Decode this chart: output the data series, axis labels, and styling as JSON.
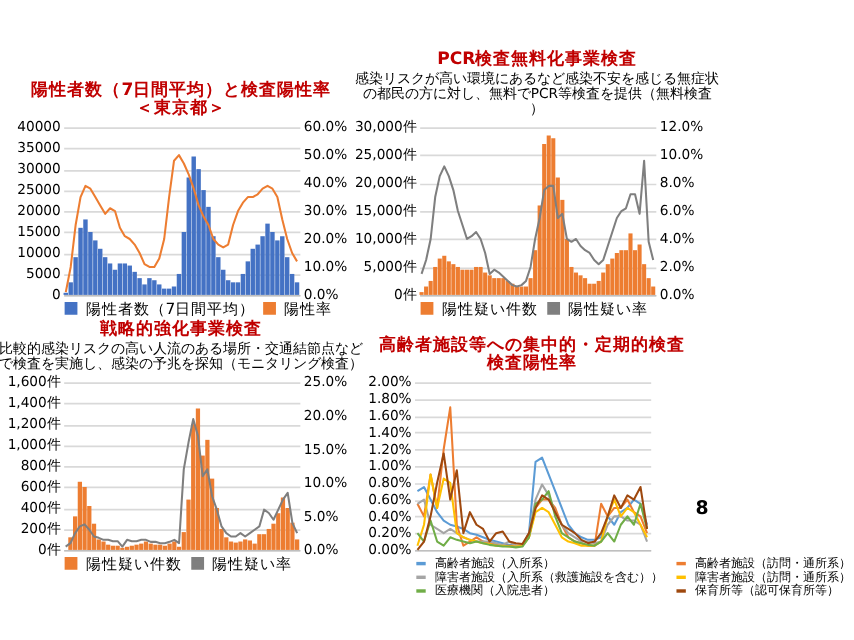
{
  "chart_data": [
    {
      "type": "bar",
      "title": "陽性者数（7日間平均）と検査陽性率＜東京都＞",
      "categories": [
        null,
        null,
        null,
        null,
        null,
        null,
        null,
        null,
        null,
        null,
        null,
        null,
        null,
        null,
        null,
        null,
        null,
        null,
        null,
        null,
        null,
        null,
        null,
        null,
        null,
        null,
        null,
        null,
        null,
        null,
        null,
        null,
        null,
        null,
        null,
        null,
        null,
        null,
        null,
        null,
        null,
        null,
        null,
        null,
        null,
        null,
        null,
        null
      ],
      "series": [
        {
          "name": "陽性者数（7日間平均）",
          "type": "bar",
          "color": "#4472c4",
          "values": [
            500,
            3000,
            9000,
            16000,
            18000,
            15000,
            13000,
            11000,
            9000,
            7500,
            6000,
            7500,
            7500,
            7000,
            5500,
            4000,
            2500,
            4000,
            3500,
            2500,
            1500,
            1500,
            2000,
            5000,
            15000,
            28000,
            33000,
            30000,
            25000,
            21000,
            14000,
            9000,
            6000,
            3500,
            3000,
            3000,
            5000,
            8000,
            11000,
            12000,
            14000,
            17000,
            15000,
            13000,
            14000,
            9000,
            5000,
            3000
          ]
        },
        {
          "name": "陽性率",
          "type": "line",
          "axis": "y2",
          "color": "#ed7d31",
          "values": [
            1,
            10,
            25,
            35,
            39,
            38,
            35,
            32,
            29,
            31,
            30,
            24,
            21,
            20,
            18,
            15,
            11,
            10,
            10,
            13,
            20,
            35,
            48,
            50,
            47,
            43,
            38,
            32,
            28,
            25,
            20,
            18,
            17,
            18,
            25,
            30,
            33,
            35,
            35,
            36,
            38,
            39,
            38,
            35,
            27,
            20,
            15,
            12
          ]
        }
      ],
      "ylim": [
        0,
        40000
      ],
      "yticks": [
        0,
        5000,
        10000,
        15000,
        20000,
        25000,
        30000,
        35000,
        40000
      ],
      "y2lim": [
        0,
        60
      ],
      "y2ticks": [
        {
          "value": 0,
          "label": "0.0%"
        },
        {
          "value": 10,
          "label": "10.0%"
        },
        {
          "value": 20,
          "label": "20.0%"
        },
        {
          "value": 30,
          "label": "30.0%"
        },
        {
          "value": 40,
          "label": "40.0%"
        },
        {
          "value": 50,
          "label": "50.0%"
        },
        {
          "value": 60,
          "label": "60.0%"
        }
      ],
      "grid": "y",
      "legend": "bottom",
      "tick_labels": "y"
    },
    {
      "type": "bar",
      "title": "PCR検査無料化事業検査",
      "subtitle": "感染リスクが高い環境にあるなど感染不安を感じる無症状の都民の方に対し、無料でPCR等検査を提供（無料検査）",
      "categories": [
        null,
        null,
        null,
        null,
        null,
        null,
        null,
        null,
        null,
        null,
        null,
        null,
        null,
        null,
        null,
        null,
        null,
        null,
        null,
        null,
        null,
        null,
        null,
        null,
        null,
        null,
        null,
        null,
        null,
        null,
        null,
        null,
        null,
        null,
        null,
        null,
        null,
        null,
        null,
        null,
        null,
        null,
        null,
        null,
        null,
        null,
        null,
        null,
        null,
        null,
        null,
        null
      ],
      "series": [
        {
          "name": "陽性疑い件数",
          "type": "bar",
          "color": "#ed7d31",
          "values": [
            500,
            1500,
            2500,
            5000,
            6500,
            7000,
            6000,
            5500,
            5000,
            4500,
            4500,
            4500,
            5000,
            5000,
            4000,
            3500,
            3000,
            3000,
            3000,
            2500,
            2000,
            1500,
            1500,
            1500,
            3000,
            8000,
            16000,
            27000,
            28500,
            28000,
            21000,
            17000,
            10000,
            5000,
            4000,
            3500,
            3000,
            2000,
            2000,
            2500,
            4000,
            5500,
            6500,
            7500,
            8000,
            8000,
            11000,
            8000,
            9000,
            5500,
            3000,
            1500
          ]
        },
        {
          "name": "陽性疑い率",
          "type": "line",
          "axis": "y2",
          "color": "#7f7f7f",
          "values": [
            1.5,
            2.5,
            4,
            7,
            8.5,
            9.2,
            8.5,
            7.5,
            6,
            5,
            4,
            4.2,
            4.5,
            4,
            3,
            1.5,
            1.8,
            1.6,
            1.3,
            1,
            0.7,
            0.6,
            0.7,
            1,
            2,
            4,
            5.5,
            7.5,
            7.8,
            7.8,
            5.5,
            5.8,
            4,
            3.8,
            4,
            3.5,
            3.2,
            3,
            2.5,
            2.2,
            2.5,
            3.5,
            4.5,
            5.5,
            6,
            6.2,
            7.2,
            7.2,
            5.8,
            9.6,
            3.8,
            2.5
          ]
        }
      ],
      "ylim": [
        0,
        30000
      ],
      "yticks": [
        {
          "value": 0,
          "label": "0件"
        },
        {
          "value": 5000,
          "label": "5,000件"
        },
        {
          "value": 10000,
          "label": "10,000件"
        },
        {
          "value": 15000,
          "label": "15,000件"
        },
        {
          "value": 20000,
          "label": "20,000件"
        },
        {
          "value": 25000,
          "label": "25,000件"
        },
        {
          "value": 30000,
          "label": "30,000件"
        }
      ],
      "y2lim": [
        0,
        12
      ],
      "y2ticks": [
        {
          "value": 0,
          "label": "0.0%"
        },
        {
          "value": 2,
          "label": "2.0%"
        },
        {
          "value": 4,
          "label": "4.0%"
        },
        {
          "value": 6,
          "label": "6.0%"
        },
        {
          "value": 8,
          "label": "8.0%"
        },
        {
          "value": 10,
          "label": "10.0%"
        },
        {
          "value": 12,
          "label": "12.0%"
        }
      ],
      "grid": "y",
      "legend": "bottom",
      "tick_labels": "y"
    },
    {
      "type": "bar",
      "title": "戦略的強化事業検査",
      "subtitle": "比較的感染リスクの高い人流のある場所・交通結節点などで検査を実施し、感染の予兆を探知（モニタリング検査）",
      "categories": [
        null,
        null,
        null,
        null,
        null,
        null,
        null,
        null,
        null,
        null,
        null,
        null,
        null,
        null,
        null,
        null,
        null,
        null,
        null,
        null,
        null,
        null,
        null,
        null,
        null,
        null,
        null,
        null,
        null,
        null,
        null,
        null,
        null,
        null,
        null,
        null,
        null,
        null,
        null,
        null,
        null,
        null,
        null,
        null,
        null,
        null,
        null,
        null,
        null,
        null
      ],
      "series": [
        {
          "name": "陽性疑い件数",
          "type": "bar",
          "color": "#ed7d31",
          "values": [
            0,
            120,
            320,
            650,
            600,
            420,
            250,
            100,
            80,
            50,
            40,
            40,
            20,
            30,
            40,
            50,
            60,
            80,
            60,
            50,
            50,
            40,
            60,
            80,
            30,
            170,
            480,
            1200,
            1350,
            900,
            1050,
            680,
            400,
            200,
            120,
            80,
            70,
            80,
            100,
            90,
            60,
            150,
            150,
            200,
            250,
            350,
            500,
            400,
            260,
            100
          ]
        },
        {
          "name": "陽性疑い率",
          "type": "line",
          "axis": "y2",
          "color": "#7f7f7f",
          "values": [
            0.5,
            1,
            2.5,
            3.5,
            3.8,
            3,
            2,
            1.8,
            1.5,
            1.5,
            1.3,
            1.3,
            0.5,
            1.5,
            1.3,
            1.3,
            1.5,
            1.5,
            1.2,
            1.2,
            1,
            1,
            1.2,
            1.5,
            1,
            12,
            16,
            19.5,
            17,
            11,
            12,
            8,
            6,
            3.5,
            2.5,
            2,
            2,
            2.5,
            2,
            2.5,
            3,
            3.5,
            6,
            5.5,
            4.5,
            6,
            7.5,
            8.5,
            4,
            2.5
          ]
        }
      ],
      "ylim": [
        0,
        1600
      ],
      "yticks": [
        {
          "value": 0,
          "label": "0件"
        },
        {
          "value": 200,
          "label": "200件"
        },
        {
          "value": 400,
          "label": "400件"
        },
        {
          "value": 600,
          "label": "600件"
        },
        {
          "value": 800,
          "label": "800件"
        },
        {
          "value": 1000,
          "label": "1,000件"
        },
        {
          "value": 1200,
          "label": "1,200件"
        },
        {
          "value": 1400,
          "label": "1,400件"
        },
        {
          "value": 1600,
          "label": "1,600件"
        }
      ],
      "y2lim": [
        0,
        25
      ],
      "y2ticks": [
        {
          "value": 0,
          "label": "0.0%"
        },
        {
          "value": 5,
          "label": "5.0%"
        },
        {
          "value": 10,
          "label": "10.0%"
        },
        {
          "value": 15,
          "label": "15.0%"
        },
        {
          "value": 20,
          "label": "20.0%"
        },
        {
          "value": 25,
          "label": "25.0%"
        }
      ],
      "grid": "y",
      "legend": "bottom",
      "tick_labels": "y"
    },
    {
      "type": "line",
      "title": "高齢者施設等への集中的・定期的検査検査陽性率",
      "categories": [
        null,
        null,
        null,
        null,
        null,
        null,
        null,
        null,
        null,
        null,
        null,
        null,
        null,
        null,
        null,
        null,
        null,
        null,
        null,
        null,
        null,
        null,
        null,
        null,
        null,
        null,
        null,
        null,
        null,
        null,
        null,
        null,
        null,
        null,
        null,
        null
      ],
      "series": [
        {
          "name": "高齢者施設（入所系）",
          "color": "#5b9bd5",
          "values": [
            0.7,
            0.75,
            0.6,
            0.45,
            0.35,
            0.3,
            0.28,
            0.25,
            0.2,
            0.18,
            0.15,
            0.12,
            0.1,
            0.08,
            0.06,
            0.05,
            0.05,
            0.2,
            1.05,
            1.1,
            0.9,
            0.7,
            0.5,
            0.3,
            0.2,
            0.15,
            0.12,
            0.12,
            0.15,
            0.4,
            0.3,
            0.45,
            0.5,
            0.6,
            0.55,
            0.3
          ]
        },
        {
          "name": "高齢者施設（訪問・通所系）",
          "color": "#ed7d31",
          "values": [
            0.55,
            0.4,
            0.9,
            0.5,
            1.2,
            1.7,
            0.3,
            0.05,
            0.1,
            0.15,
            0.1,
            0.08,
            0.07,
            0.05,
            0.05,
            0.05,
            0.05,
            0.15,
            0.5,
            0.6,
            0.6,
            0.5,
            0.3,
            0.15,
            0.1,
            0.08,
            0.05,
            0.05,
            0.55,
            0.4,
            0.5,
            0.5,
            0.6,
            0.45,
            0.4,
            0.2
          ]
        },
        {
          "name": "障害者施設（入所系（救護施設を含む））",
          "color": "#a5a5a5",
          "values": [
            0.55,
            0.6,
            0.3,
            0.25,
            0.2,
            0.25,
            0.2,
            0.15,
            0.12,
            0.1,
            0.1,
            0.1,
            0.08,
            0.06,
            0.1,
            0.05,
            0.05,
            0.2,
            0.6,
            0.78,
            0.65,
            0.45,
            0.3,
            0.2,
            0.15,
            0.1,
            0.1,
            0.08,
            0.1,
            0.3,
            0.4,
            0.4,
            0.35,
            0.35,
            0.3,
            0.1
          ]
        },
        {
          "name": "障害者施設（訪問・通所系）",
          "color": "#ffc000",
          "values": [
            0.05,
            0.3,
            0.9,
            0.5,
            0.85,
            0.8,
            0.2,
            0.15,
            0.12,
            0.1,
            0.08,
            0.07,
            0.05,
            0.05,
            0.04,
            0.04,
            0.05,
            0.15,
            0.45,
            0.5,
            0.45,
            0.3,
            0.15,
            0.1,
            0.08,
            0.05,
            0.05,
            0.05,
            0.1,
            0.4,
            0.6,
            0.4,
            0.5,
            0.45,
            0.3,
            0.15
          ]
        },
        {
          "name": "医療機関（入院患者）",
          "color": "#70ad47",
          "values": [
            0.2,
            0.1,
            0.35,
            0.1,
            0.05,
            0.15,
            0.12,
            0.1,
            0.08,
            0.1,
            0.08,
            0.06,
            0.05,
            0.04,
            0.04,
            0.03,
            0.04,
            0.15,
            0.55,
            0.6,
            0.7,
            0.4,
            0.2,
            0.15,
            0.1,
            0.08,
            0.06,
            0.05,
            0.1,
            0.2,
            0.1,
            0.3,
            0.4,
            0.3,
            0.55,
            0.25
          ]
        },
        {
          "name": "保育所等（認可保育所等）",
          "color": "#9e480e",
          "values": [
            0,
            0.1,
            0.4,
            0.8,
            1.15,
            0.6,
            0.95,
            0.2,
            0.45,
            0.3,
            0.25,
            0.1,
            0.2,
            0.22,
            0.1,
            0.08,
            0.07,
            0.2,
            0.5,
            0.65,
            0.6,
            0.45,
            0.3,
            0.25,
            0.2,
            0.12,
            0.08,
            0.1,
            0.2,
            0.4,
            0.65,
            0.5,
            0.65,
            0.6,
            0.75,
            0.25
          ]
        }
      ],
      "ylim": [
        0,
        2
      ],
      "yticks": [
        {
          "value": 0,
          "label": "0.00%"
        },
        {
          "value": 0.2,
          "label": "0.20%"
        },
        {
          "value": 0.4,
          "label": "0.40%"
        },
        {
          "value": 0.6,
          "label": "0.60%"
        },
        {
          "value": 0.8,
          "label": "0.80%"
        },
        {
          "value": 1,
          "label": "1.00%"
        },
        {
          "value": 1.2,
          "label": "1.20%"
        },
        {
          "value": 1.4,
          "label": "1.40%"
        },
        {
          "value": 1.6,
          "label": "1.60%"
        },
        {
          "value": 1.8,
          "label": "1.80%"
        },
        {
          "value": 2,
          "label": "2.00%"
        }
      ],
      "grid": "y",
      "legend": "bottom",
      "tick_labels": "y",
      "annotations": [
        "8"
      ]
    }
  ]
}
